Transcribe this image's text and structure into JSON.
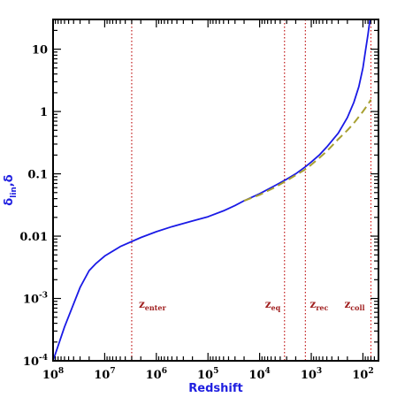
{
  "chart_data": {
    "type": "line",
    "title": "",
    "xlabel": "Redshift",
    "ylabel": "δ_lin,δ",
    "x_scale": "log",
    "y_scale": "log",
    "x_reversed": true,
    "xlim": [
      100000000,
      50
    ],
    "ylim": [
      0.0001,
      30
    ],
    "x_ticks": [
      {
        "value": 100000000,
        "base": "10",
        "exp": "8"
      },
      {
        "value": 10000000,
        "base": "10",
        "exp": "7"
      },
      {
        "value": 1000000,
        "base": "10",
        "exp": "6"
      },
      {
        "value": 100000,
        "base": "10",
        "exp": "5"
      },
      {
        "value": 10000,
        "base": "10",
        "exp": "4"
      },
      {
        "value": 1000,
        "base": "10",
        "exp": "3"
      },
      {
        "value": 100,
        "base": "10",
        "exp": "2"
      }
    ],
    "y_ticks": [
      {
        "value": 0.0001,
        "base": "10",
        "exp": "-4"
      },
      {
        "value": 0.001,
        "base": "10",
        "exp": "-3"
      },
      {
        "value": 0.01,
        "base": "0.01",
        "exp": ""
      },
      {
        "value": 0.1,
        "base": "0.1",
        "exp": ""
      },
      {
        "value": 1,
        "base": "1",
        "exp": ""
      },
      {
        "value": 10,
        "base": "10",
        "exp": ""
      }
    ],
    "series": [
      {
        "color": "#1a1ae6",
        "style": "solid",
        "points": [
          [
            100000000,
            0.0001
          ],
          [
            60000000,
            0.00035
          ],
          [
            30000000,
            0.0015
          ],
          [
            20000000,
            0.0028
          ],
          [
            15000000,
            0.0036
          ],
          [
            10000000,
            0.0048
          ],
          [
            5000000,
            0.0068
          ],
          [
            2000000,
            0.0095
          ],
          [
            1000000,
            0.0118
          ],
          [
            500000,
            0.0142
          ],
          [
            200000,
            0.0175
          ],
          [
            100000,
            0.0205
          ],
          [
            50000,
            0.0255
          ],
          [
            30000,
            0.031
          ],
          [
            20000,
            0.037
          ],
          [
            10000,
            0.048
          ],
          [
            5000,
            0.065
          ],
          [
            3000,
            0.082
          ],
          [
            2000,
            0.1
          ],
          [
            1300,
            0.13
          ],
          [
            1000,
            0.155
          ],
          [
            700,
            0.2
          ],
          [
            500,
            0.27
          ],
          [
            300,
            0.45
          ],
          [
            200,
            0.8
          ],
          [
            150,
            1.4
          ],
          [
            120,
            2.5
          ],
          [
            100,
            5
          ],
          [
            90,
            9
          ],
          [
            80,
            17
          ],
          [
            73,
            30
          ]
        ]
      },
      {
        "color": "#a8a030",
        "style": "dashed",
        "points": [
          [
            20000,
            0.037
          ],
          [
            10000,
            0.046
          ],
          [
            5000,
            0.061
          ],
          [
            3000,
            0.078
          ],
          [
            2000,
            0.095
          ],
          [
            1300,
            0.118
          ],
          [
            1000,
            0.14
          ],
          [
            700,
            0.18
          ],
          [
            500,
            0.23
          ],
          [
            300,
            0.36
          ],
          [
            200,
            0.5
          ],
          [
            150,
            0.65
          ],
          [
            100,
            1.0
          ],
          [
            80,
            1.3
          ],
          [
            70,
            1.55
          ]
        ]
      }
    ],
    "vlines": [
      {
        "x": 3000000,
        "label": "z",
        "sub": "enter",
        "color": "#c01818"
      },
      {
        "x": 3300,
        "label": "z",
        "sub": "eq",
        "color": "#c01818"
      },
      {
        "x": 1300,
        "label": "z",
        "sub": "rec",
        "color": "#c01818"
      },
      {
        "x": 70,
        "label": "z",
        "sub": "coll",
        "color": "#e01818"
      }
    ]
  }
}
